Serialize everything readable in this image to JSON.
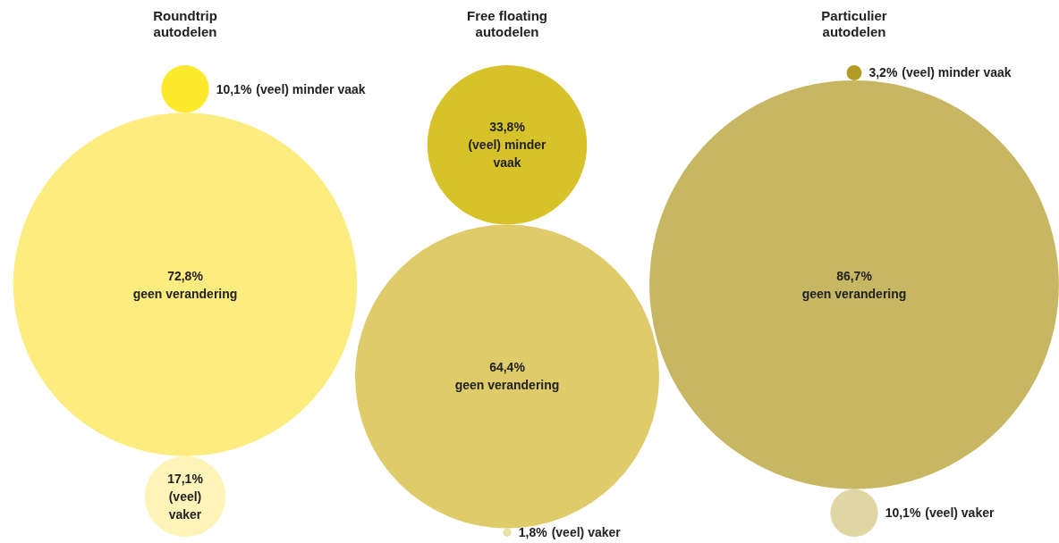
{
  "chart_data": [
    {
      "type": "other",
      "title": "Roundtrip autodelen",
      "categories": [
        "(veel) minder vaak",
        "geen verandering",
        "(veel) vaker"
      ],
      "values": [
        10.1,
        72.8,
        17.1
      ],
      "value_labels": [
        "10,1%",
        "72,8%",
        "17,1%"
      ],
      "colors": [
        "#fde92e",
        "#fdec7f",
        "#fef4b8"
      ]
    },
    {
      "type": "other",
      "title": "Free floating autodelen",
      "categories": [
        "(veel) minder vaak",
        "geen verandering",
        "(veel) vaker"
      ],
      "values": [
        33.8,
        64.4,
        1.8
      ],
      "value_labels": [
        "33,8%",
        "64,4%",
        "1,8%"
      ],
      "colors": [
        "#d8c22a",
        "#dfcb6a",
        "#ece0a8"
      ]
    },
    {
      "type": "other",
      "title": "Particulier autodelen",
      "categories": [
        "(veel) minder vaak",
        "geen verandering",
        "(veel) vaker"
      ],
      "values": [
        3.2,
        86.7,
        10.1
      ],
      "value_labels": [
        "3,2%",
        "86,7%",
        "10,1%"
      ],
      "colors": [
        "#b39c25",
        "#c7b763",
        "#e0d6a3"
      ]
    }
  ]
}
